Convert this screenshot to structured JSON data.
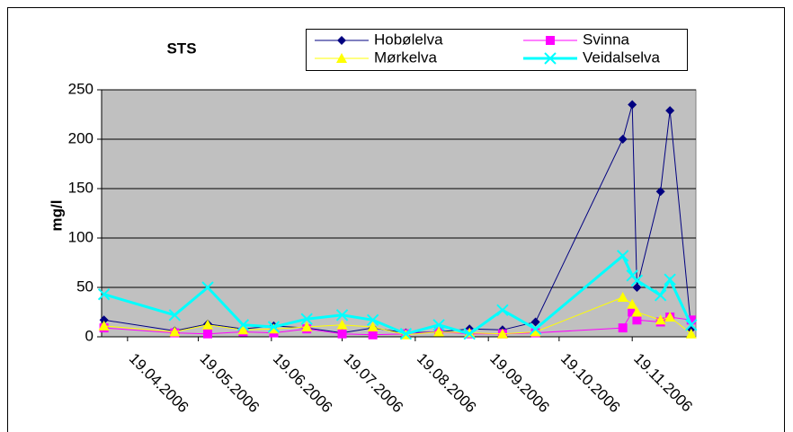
{
  "chart_data": {
    "type": "line",
    "title": "STS",
    "y_label": "mg/l",
    "x": [
      "09.04.2006",
      "09.05.2006",
      "23.05.2006",
      "07.06.2006",
      "20.06.2006",
      "04.07.2006",
      "19.07.2006",
      "01.08.2006",
      "15.08.2006",
      "29.08.2006",
      "11.09.2006",
      "25.09.2006",
      "09.10.2006",
      "15.11.2006",
      "19.11.2006",
      "21.11.2006",
      "01.12.2006",
      "05.12.2006",
      "14.12.2006"
    ],
    "xlim": [
      "08.04.2006",
      "16.12.2006"
    ],
    "xticks": [
      "19.04.2006",
      "19.05.2006",
      "19.06.2006",
      "19.07.2006",
      "19.08.2006",
      "19.09.2006",
      "19.10.2006",
      "19.11.2006"
    ],
    "ylim": [
      0,
      250
    ],
    "yticks": [
      0,
      50,
      100,
      150,
      200,
      250
    ],
    "grid": true,
    "plot_background": "#c0c0c0",
    "series": [
      {
        "name": "Hobølelva",
        "color": "#000080",
        "marker": "diamond",
        "values": [
          17,
          6,
          13,
          8,
          11,
          9,
          4,
          9,
          4,
          5,
          8,
          7,
          15,
          200,
          235,
          50,
          147,
          229,
          8
        ]
      },
      {
        "name": "Svinna",
        "color": "#ff00ff",
        "marker": "square",
        "values": [
          9,
          4,
          3,
          5,
          4,
          8,
          3,
          2,
          3,
          5,
          3,
          3,
          4,
          9,
          25,
          17,
          15,
          20,
          17
        ]
      },
      {
        "name": "Mørkelva",
        "color": "#ffff00",
        "marker": "triangle",
        "values": [
          11,
          5,
          12,
          7,
          8,
          10,
          12,
          10,
          2,
          5,
          4,
          3,
          5,
          40,
          33,
          25,
          17,
          20,
          3
        ]
      },
      {
        "name": "Veidalselva",
        "color": "#00ffff",
        "marker": "x",
        "values": [
          43,
          22,
          50,
          12,
          10,
          18,
          22,
          17,
          3,
          12,
          3,
          27,
          8,
          82,
          62,
          57,
          42,
          58,
          12
        ]
      }
    ]
  }
}
